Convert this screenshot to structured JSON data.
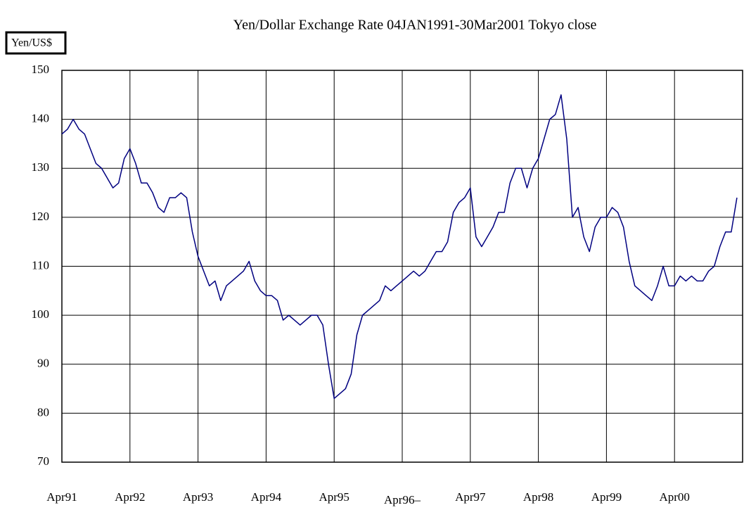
{
  "chart_data": {
    "type": "line",
    "title": "Yen/Dollar Exchange Rate  04JAN1991-30Mar2001 Tokyo close",
    "y_label": "Yen/US$",
    "categories": [
      "Apr91",
      null,
      null,
      null,
      null,
      null,
      null,
      null,
      null,
      null,
      null,
      null,
      "Apr92",
      null,
      null,
      null,
      null,
      null,
      null,
      null,
      null,
      null,
      null,
      null,
      "Apr93",
      null,
      null,
      null,
      null,
      null,
      null,
      null,
      null,
      null,
      null,
      null,
      "Apr94",
      null,
      null,
      null,
      null,
      null,
      null,
      null,
      null,
      null,
      null,
      null,
      "Apr95",
      null,
      null,
      null,
      null,
      null,
      null,
      null,
      null,
      null,
      null,
      null,
      "Apr96–",
      null,
      null,
      null,
      null,
      null,
      null,
      null,
      null,
      null,
      null,
      null,
      "Apr97",
      null,
      null,
      null,
      null,
      null,
      null,
      null,
      null,
      null,
      null,
      null,
      "Apr98",
      null,
      null,
      null,
      null,
      null,
      null,
      null,
      null,
      null,
      null,
      null,
      "Apr99",
      null,
      null,
      null,
      null,
      null,
      null,
      null,
      null,
      null,
      null,
      null,
      "Apr00",
      null,
      null,
      null,
      null,
      null,
      null,
      null,
      null,
      null,
      null,
      null
    ],
    "series": [
      {
        "color": "#000080",
        "values": [
          137,
          138,
          140,
          138,
          137,
          134,
          131,
          130,
          128,
          126,
          127,
          132,
          134,
          131,
          127,
          127,
          125,
          122,
          121,
          124,
          124,
          125,
          124,
          117,
          112,
          109,
          106,
          107,
          103,
          106,
          107,
          108,
          109,
          111,
          107,
          105,
          104,
          104,
          103,
          99,
          100,
          99,
          98,
          99,
          100,
          100,
          98,
          90,
          83,
          84,
          85,
          88,
          96,
          100,
          101,
          102,
          103,
          106,
          105,
          106,
          107,
          108,
          109,
          108,
          109,
          111,
          113,
          113,
          115,
          121,
          123,
          124,
          126,
          116,
          114,
          116,
          118,
          121,
          121,
          127,
          130,
          130,
          126,
          130,
          132,
          136,
          140,
          141,
          145,
          136,
          120,
          122,
          116,
          113,
          118,
          120,
          120,
          122,
          121,
          118,
          111,
          106,
          105,
          104,
          103,
          106,
          110,
          106,
          106,
          108,
          107,
          108,
          107,
          107,
          109,
          110,
          114,
          117,
          117,
          124
        ]
      }
    ],
    "ylim": [
      70,
      150
    ],
    "yticks": [
      70,
      80,
      90,
      100,
      110,
      120,
      130,
      140,
      150
    ],
    "grid": true
  }
}
